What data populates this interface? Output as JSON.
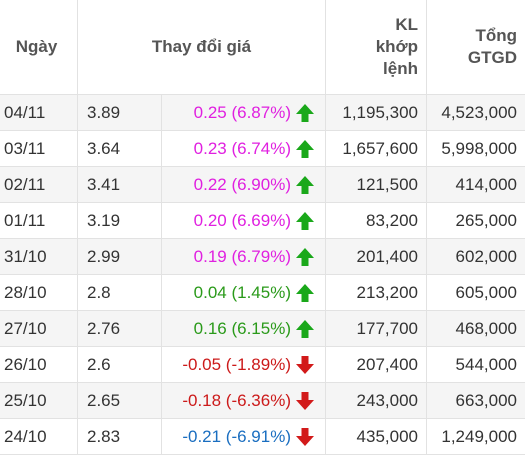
{
  "colors": {
    "ceiling": "#e020e0",
    "up": "#2a9a1a",
    "down": "#cc1a1a",
    "floor": "#1a6ec0",
    "arrow_up": "#1aa81a",
    "arrow_down": "#d21a1a"
  },
  "header": {
    "date": "Ngày",
    "change": "Thay đổi giá",
    "volume_line1": "KL",
    "volume_line2": "khớp",
    "volume_line3": "lệnh",
    "value_line1": "Tổng",
    "value_line2": "GTGD"
  },
  "rows": [
    {
      "date": "04/11",
      "price": "3.89",
      "change": "0.25 (6.87%)",
      "status": "ceiling",
      "direction": "up",
      "volume": "1,195,300",
      "value": "4,523,000"
    },
    {
      "date": "03/11",
      "price": "3.64",
      "change": "0.23 (6.74%)",
      "status": "ceiling",
      "direction": "up",
      "volume": "1,657,600",
      "value": "5,998,000"
    },
    {
      "date": "02/11",
      "price": "3.41",
      "change": "0.22 (6.90%)",
      "status": "ceiling",
      "direction": "up",
      "volume": "121,500",
      "value": "414,000"
    },
    {
      "date": "01/11",
      "price": "3.19",
      "change": "0.20 (6.69%)",
      "status": "ceiling",
      "direction": "up",
      "volume": "83,200",
      "value": "265,000"
    },
    {
      "date": "31/10",
      "price": "2.99",
      "change": "0.19 (6.79%)",
      "status": "ceiling",
      "direction": "up",
      "volume": "201,400",
      "value": "602,000"
    },
    {
      "date": "28/10",
      "price": "2.8",
      "change": "0.04 (1.45%)",
      "status": "up",
      "direction": "up",
      "volume": "213,200",
      "value": "605,000"
    },
    {
      "date": "27/10",
      "price": "2.76",
      "change": "0.16 (6.15%)",
      "status": "up",
      "direction": "up",
      "volume": "177,700",
      "value": "468,000"
    },
    {
      "date": "26/10",
      "price": "2.6",
      "change": "-0.05 (-1.89%)",
      "status": "down",
      "direction": "down",
      "volume": "207,400",
      "value": "544,000"
    },
    {
      "date": "25/10",
      "price": "2.65",
      "change": "-0.18 (-6.36%)",
      "status": "down",
      "direction": "down",
      "volume": "243,000",
      "value": "663,000"
    },
    {
      "date": "24/10",
      "price": "2.83",
      "change": "-0.21 (-6.91%)",
      "status": "floor",
      "direction": "down",
      "volume": "435,000",
      "value": "1,249,000"
    }
  ]
}
